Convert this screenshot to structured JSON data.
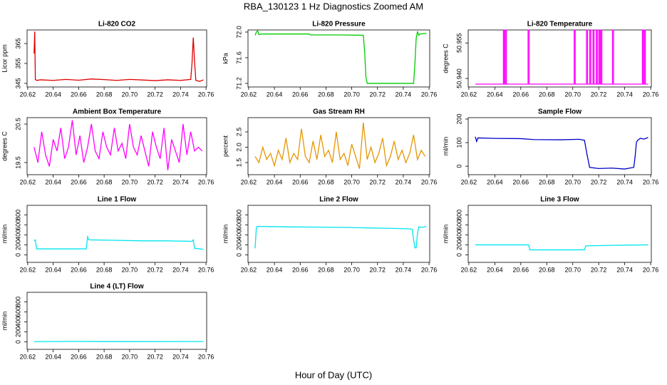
{
  "page": {
    "title": "RBA_130123  1 Hz Diagnostics Zoomed AM",
    "xlabel": "Hour of Day (UTC)"
  },
  "chart_data": [
    {
      "type": "line",
      "title": "Li-820 CO2",
      "ylabel": "Licor ppm",
      "color": "#e00000",
      "x": [
        20.625,
        20.6255,
        20.626,
        20.627,
        20.63,
        20.64,
        20.65,
        20.66,
        20.67,
        20.68,
        20.69,
        20.7,
        20.71,
        20.72,
        20.73,
        20.74,
        20.748,
        20.749,
        20.75,
        20.751,
        20.752,
        20.755,
        20.758
      ],
      "values": [
        360,
        371,
        347,
        346.5,
        346.8,
        346.5,
        347,
        346.6,
        347.2,
        346.9,
        346.5,
        347,
        346.7,
        346.4,
        346.8,
        346.5,
        347,
        355,
        368,
        356,
        346.5,
        346,
        346.8
      ],
      "xlim": [
        20.6195,
        20.7605
      ],
      "ylim": [
        343.2,
        371.8
      ],
      "xticks": [
        20.62,
        20.64,
        20.66,
        20.68,
        {
          "value": 20.7,
          "label": "20.70"
        },
        20.72,
        20.74,
        20.76
      ],
      "yticks": [
        345,
        355,
        365
      ]
    },
    {
      "type": "line",
      "title": "Li-820 Pressure",
      "ylabel": "kPa",
      "color": "#00cc00",
      "x": [
        20.625,
        20.626,
        20.627,
        20.628,
        20.63,
        20.65,
        20.667,
        20.668,
        20.69,
        20.709,
        20.71,
        20.711,
        20.712,
        20.73,
        20.748,
        20.749,
        20.75,
        20.751,
        20.752,
        20.753,
        20.758
      ],
      "values": [
        71.95,
        72.0,
        72.02,
        71.96,
        71.97,
        71.97,
        71.97,
        71.955,
        71.955,
        71.95,
        71.7,
        71.3,
        71.2,
        71.2,
        71.2,
        71.5,
        71.9,
        72.01,
        71.95,
        71.97,
        71.98
      ],
      "xlim": [
        20.6195,
        20.7605
      ],
      "ylim": [
        71.144,
        72.033
      ],
      "xticks": [
        20.62,
        20.64,
        20.66,
        20.68,
        {
          "value": 20.7,
          "label": "20.70"
        },
        20.72,
        20.74,
        20.76
      ],
      "yticks": [
        71.2,
        71.6,
        {
          "value": 72,
          "label": "72.0"
        }
      ]
    },
    {
      "type": "line",
      "title": "Li-820 Temperature",
      "ylabel": "degrees C",
      "color": "#ff00ff",
      "x": [
        20.625,
        20.6466,
        20.6466,
        20.6474,
        20.6474,
        20.6481,
        20.6481,
        20.6489,
        20.6489,
        20.6656,
        20.6656,
        20.6664,
        20.6664,
        20.7011,
        20.7011,
        20.7019,
        20.7019,
        20.7106,
        20.7106,
        20.7114,
        20.7114,
        20.7131,
        20.7131,
        20.7139,
        20.7139,
        20.7156,
        20.7156,
        20.7164,
        20.7164,
        20.7181,
        20.7181,
        20.7189,
        20.7189,
        20.7201,
        20.7201,
        20.7209,
        20.7209,
        20.7216,
        20.7216,
        20.7224,
        20.7224,
        20.7306,
        20.7306,
        20.7314,
        20.7314,
        20.7536,
        20.7536,
        20.7544,
        20.7544,
        20.7551,
        20.7551,
        20.7559,
        20.7559,
        20.758
      ],
      "values": [
        50.9376,
        50.9376,
        50.9604,
        50.9604,
        50.9376,
        50.9376,
        50.9604,
        50.9604,
        50.9376,
        50.9376,
        50.9604,
        50.9604,
        50.9376,
        50.9376,
        50.9604,
        50.9604,
        50.9376,
        50.9376,
        50.9604,
        50.9604,
        50.9376,
        50.9376,
        50.9604,
        50.9604,
        50.9376,
        50.9376,
        50.9604,
        50.9604,
        50.9376,
        50.9376,
        50.9604,
        50.9604,
        50.9376,
        50.9376,
        50.9604,
        50.9604,
        50.9376,
        50.9376,
        50.9604,
        50.9604,
        50.9376,
        50.9376,
        50.9604,
        50.9604,
        50.9376,
        50.9376,
        50.9604,
        50.9604,
        50.9376,
        50.9376,
        50.9604,
        50.9604,
        50.9376,
        50.9376
      ],
      "xlim": [
        20.6195,
        20.7605
      ],
      "ylim": [
        50.9364,
        50.9605
      ],
      "xticks": [
        20.62,
        20.64,
        20.66,
        20.68,
        {
          "value": 20.7,
          "label": "20.70"
        },
        20.72,
        20.74,
        20.76
      ],
      "yticks": [
        {
          "value": 50.94,
          "label": "50.940"
        },
        50.955
      ]
    },
    {
      "type": "line",
      "title": "Ambient Box Temperature",
      "ylabel": "degrees C",
      "color": "#ff00ff",
      "x": [
        20.625,
        20.628,
        20.631,
        20.634,
        20.637,
        20.64,
        20.643,
        20.646,
        20.649,
        20.652,
        20.655,
        20.658,
        20.661,
        20.664,
        20.667,
        20.67,
        20.673,
        20.676,
        20.679,
        20.682,
        20.685,
        20.688,
        20.691,
        20.694,
        20.697,
        20.7,
        20.703,
        20.706,
        20.709,
        20.712,
        20.715,
        20.718,
        20.721,
        20.724,
        20.727,
        20.73,
        20.733,
        20.736,
        20.739,
        20.742,
        20.745,
        20.748,
        20.751,
        20.754,
        20.757
      ],
      "values": [
        19.9,
        19.5,
        20.3,
        19.7,
        19.4,
        20.1,
        19.8,
        20.4,
        19.6,
        19.9,
        20.6,
        19.7,
        20.2,
        19.5,
        19.9,
        20.5,
        19.8,
        19.6,
        20.3,
        19.9,
        19.7,
        20.4,
        19.8,
        20.0,
        19.6,
        20.5,
        19.9,
        19.7,
        20.2,
        19.8,
        19.4,
        20.3,
        19.9,
        19.6,
        20.4,
        19.3,
        20.1,
        19.8,
        19.5,
        20.5,
        19.7,
        20.3,
        19.8,
        19.9,
        19.8
      ],
      "xlim": [
        20.6195,
        20.7605
      ],
      "ylim": [
        19.185,
        20.667
      ],
      "xticks": [
        20.62,
        20.64,
        20.66,
        20.68,
        {
          "value": 20.7,
          "label": "20.70"
        },
        20.72,
        20.74,
        20.76
      ],
      "yticks": [
        19.5,
        20.5
      ]
    },
    {
      "type": "line",
      "title": "Gas Stream RH",
      "ylabel": "percent",
      "color": "#e69500",
      "x": [
        20.625,
        20.628,
        20.631,
        20.634,
        20.637,
        20.64,
        20.643,
        20.646,
        20.649,
        20.652,
        20.655,
        20.658,
        20.661,
        20.664,
        20.667,
        20.67,
        20.673,
        20.676,
        20.679,
        20.682,
        20.685,
        20.688,
        20.691,
        20.694,
        20.697,
        20.7,
        20.703,
        20.706,
        20.709,
        20.712,
        20.715,
        20.718,
        20.721,
        20.724,
        20.727,
        20.73,
        20.733,
        20.736,
        20.739,
        20.742,
        20.745,
        20.748,
        20.751,
        20.754,
        20.757
      ],
      "values": [
        1.7,
        1.5,
        2.0,
        1.6,
        1.8,
        1.4,
        1.9,
        1.6,
        2.3,
        1.5,
        1.8,
        1.6,
        2.6,
        1.7,
        1.5,
        2.2,
        1.6,
        2.4,
        1.7,
        1.9,
        1.5,
        2.5,
        1.6,
        1.8,
        1.4,
        2.1,
        1.7,
        1.3,
        2.8,
        1.6,
        2.0,
        1.5,
        1.8,
        2.3,
        1.4,
        1.7,
        2.2,
        1.6,
        1.9,
        1.5,
        1.8,
        2.4,
        1.6,
        1.9,
        1.7
      ],
      "xlim": [
        20.6195,
        20.7605
      ],
      "ylim": [
        1.105,
        2.965
      ],
      "xticks": [
        20.62,
        20.64,
        20.66,
        20.68,
        {
          "value": 20.7,
          "label": "20.70"
        },
        20.72,
        20.74,
        20.76
      ],
      "yticks": [
        1.5,
        {
          "value": 2,
          "label": "2.0"
        },
        2.5
      ]
    },
    {
      "type": "line",
      "title": "Sample Flow",
      "ylabel": "ml/min",
      "color": "#0000cc",
      "x": [
        20.625,
        20.626,
        20.627,
        20.64,
        20.66,
        20.67,
        20.69,
        20.705,
        20.709,
        20.711,
        20.713,
        20.72,
        20.73,
        20.74,
        20.747,
        20.748,
        20.749,
        20.75,
        20.752,
        20.755,
        20.758
      ],
      "values": [
        125,
        105,
        120,
        118,
        117,
        113,
        112,
        114,
        110,
        50,
        -5,
        -10,
        -8,
        -12,
        -5,
        40,
        100,
        110,
        118,
        115,
        122
      ],
      "xlim": [
        20.6195,
        20.7605
      ],
      "ylim": [
        -36,
        206
      ],
      "xticks": [
        20.62,
        20.64,
        20.66,
        20.68,
        {
          "value": 20.7,
          "label": "20.70"
        },
        20.72,
        20.74,
        20.76
      ],
      "yticks": [
        0,
        100,
        200
      ]
    },
    {
      "type": "line",
      "title": "Line 1 Flow",
      "ylabel": "ml/min",
      "color": "#00e5ee",
      "x": [
        20.625,
        20.626,
        20.627,
        20.64,
        20.66,
        20.666,
        20.667,
        20.668,
        20.69,
        20.71,
        20.73,
        20.749,
        20.75,
        20.751,
        20.755,
        20.758
      ],
      "values": [
        280,
        300,
        120,
        120,
        120,
        120,
        360,
        300,
        290,
        280,
        280,
        270,
        300,
        130,
        120,
        110
      ],
      "xlim": [
        20.6195,
        20.7605
      ],
      "ylim": [
        -150,
        990
      ],
      "xticks": [
        20.62,
        20.64,
        20.66,
        20.68,
        {
          "value": 20.7,
          "label": "20.70"
        },
        20.72,
        20.74,
        20.76
      ],
      "yticks": [
        0,
        200,
        400,
        600,
        800
      ]
    },
    {
      "type": "line",
      "title": "Line 2 Flow",
      "ylabel": "ml/min",
      "color": "#00e5ee",
      "x": [
        20.625,
        20.626,
        20.627,
        20.65,
        20.67,
        20.69,
        20.71,
        20.73,
        20.745,
        20.747,
        20.748,
        20.749,
        20.75,
        20.751,
        20.752,
        20.755,
        20.758
      ],
      "values": [
        130,
        550,
        570,
        560,
        555,
        550,
        540,
        530,
        520,
        510,
        300,
        140,
        140,
        420,
        560,
        550,
        570
      ],
      "xlim": [
        20.6195,
        20.7605
      ],
      "ylim": [
        -150,
        990
      ],
      "xticks": [
        20.62,
        20.64,
        20.66,
        20.68,
        {
          "value": 20.7,
          "label": "20.70"
        },
        20.72,
        20.74,
        20.76
      ],
      "yticks": [
        0,
        200,
        400,
        600,
        800
      ]
    },
    {
      "type": "line",
      "title": "Line 3 Flow",
      "ylabel": "ml/min",
      "color": "#00e5ee",
      "x": [
        20.625,
        20.666,
        20.667,
        20.709,
        20.71,
        20.73,
        20.758
      ],
      "values": [
        200,
        200,
        100,
        100,
        180,
        190,
        200
      ],
      "xlim": [
        20.6195,
        20.7605
      ],
      "ylim": [
        -150,
        990
      ],
      "xticks": [
        20.62,
        20.64,
        20.66,
        20.68,
        {
          "value": 20.7,
          "label": "20.70"
        },
        20.72,
        20.74,
        20.76
      ],
      "yticks": [
        0,
        200,
        400,
        600,
        800
      ]
    },
    {
      "type": "line",
      "title": "Line 4 (LT) Flow",
      "ylabel": "ml/min",
      "color": "#00e5ee",
      "x": [
        20.625,
        20.66,
        20.7,
        20.758
      ],
      "values": [
        5,
        8,
        6,
        7
      ],
      "xlim": [
        20.6195,
        20.7605
      ],
      "ylim": [
        -150,
        990
      ],
      "xticks": [
        20.62,
        20.64,
        20.66,
        20.68,
        {
          "value": 20.7,
          "label": "20.70"
        },
        20.72,
        20.74,
        20.76
      ],
      "yticks": [
        0,
        200,
        400,
        600,
        800
      ]
    }
  ]
}
